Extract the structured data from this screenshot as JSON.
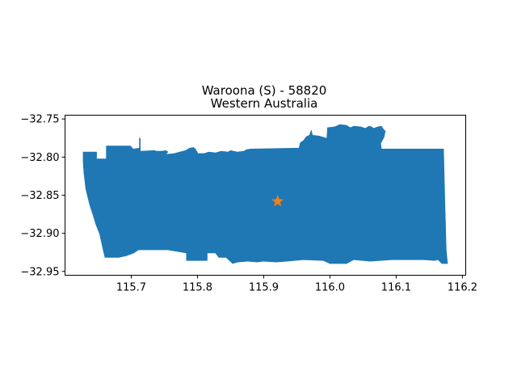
{
  "chart_data": {
    "type": "map",
    "title_line1": "Waroona (S) - 58820",
    "title_line2": "Western Australia",
    "xlim": [
      115.6,
      116.205
    ],
    "ylim": [
      -32.955,
      -32.745
    ],
    "xticks": [
      115.7,
      115.8,
      115.9,
      116.0,
      116.1,
      116.2
    ],
    "xtick_labels": [
      "115.7",
      "115.8",
      "115.9",
      "116.0",
      "116.1",
      "116.2"
    ],
    "yticks": [
      -32.75,
      -32.8,
      -32.85,
      -32.9,
      -32.95
    ],
    "ytick_labels": [
      "−32.75",
      "−32.80",
      "−32.85",
      "−32.90",
      "−32.95"
    ],
    "region_color": "#1f77b4",
    "marker_color": "#ff7f0e",
    "marker": {
      "lon": 115.921,
      "lat": -32.858
    },
    "boundary": [
      [
        115.627,
        -32.793
      ],
      [
        115.648,
        -32.793
      ],
      [
        115.648,
        -32.802
      ],
      [
        115.662,
        -32.802
      ],
      [
        115.662,
        -32.785
      ],
      [
        115.699,
        -32.785
      ],
      [
        115.703,
        -32.789
      ],
      [
        115.712,
        -32.788
      ],
      [
        115.712,
        -32.774
      ],
      [
        115.714,
        -32.776
      ],
      [
        115.714,
        -32.792
      ],
      [
        115.735,
        -32.791
      ],
      [
        115.738,
        -32.792
      ],
      [
        115.746,
        -32.792
      ],
      [
        115.752,
        -32.791
      ],
      [
        115.756,
        -32.793
      ],
      [
        115.753,
        -32.796
      ],
      [
        115.765,
        -32.795
      ],
      [
        115.773,
        -32.793
      ],
      [
        115.782,
        -32.791
      ],
      [
        115.788,
        -32.788
      ],
      [
        115.794,
        -32.787
      ],
      [
        115.797,
        -32.789
      ],
      [
        115.801,
        -32.795
      ],
      [
        115.81,
        -32.795
      ],
      [
        115.817,
        -32.793
      ],
      [
        115.827,
        -32.794
      ],
      [
        115.836,
        -32.792
      ],
      [
        115.846,
        -32.793
      ],
      [
        115.85,
        -32.791
      ],
      [
        115.86,
        -32.793
      ],
      [
        115.87,
        -32.792
      ],
      [
        115.874,
        -32.79
      ],
      [
        115.88,
        -32.789
      ],
      [
        115.944,
        -32.788
      ],
      [
        115.953,
        -32.788
      ],
      [
        115.955,
        -32.781
      ],
      [
        115.96,
        -32.778
      ],
      [
        115.964,
        -32.773
      ],
      [
        115.969,
        -32.771
      ],
      [
        115.97,
        -32.768
      ],
      [
        115.972,
        -32.764
      ],
      [
        115.974,
        -32.771
      ],
      [
        115.984,
        -32.772
      ],
      [
        115.995,
        -32.775
      ],
      [
        115.996,
        -32.761
      ],
      [
        116.007,
        -32.76
      ],
      [
        116.015,
        -32.757
      ],
      [
        116.025,
        -32.758
      ],
      [
        116.031,
        -32.761
      ],
      [
        116.036,
        -32.759
      ],
      [
        116.047,
        -32.76
      ],
      [
        116.053,
        -32.762
      ],
      [
        116.059,
        -32.759
      ],
      [
        116.063,
        -32.76
      ],
      [
        116.066,
        -32.762
      ],
      [
        116.072,
        -32.76
      ],
      [
        116.078,
        -32.759
      ],
      [
        116.08,
        -32.762
      ],
      [
        116.084,
        -32.766
      ],
      [
        116.082,
        -32.774
      ],
      [
        116.077,
        -32.782
      ],
      [
        116.078,
        -32.789
      ],
      [
        116.172,
        -32.789
      ],
      [
        116.174,
        -32.862
      ],
      [
        116.176,
        -32.922
      ],
      [
        116.178,
        -32.94
      ],
      [
        116.169,
        -32.94
      ],
      [
        116.163,
        -32.935
      ],
      [
        116.158,
        -32.936
      ],
      [
        116.142,
        -32.935
      ],
      [
        116.125,
        -32.935
      ],
      [
        116.093,
        -32.935
      ],
      [
        116.061,
        -32.937
      ],
      [
        116.036,
        -32.935
      ],
      [
        116.025,
        -32.94
      ],
      [
        116.0,
        -32.94
      ],
      [
        115.99,
        -32.936
      ],
      [
        115.96,
        -32.935
      ],
      [
        115.946,
        -32.936
      ],
      [
        115.935,
        -32.937
      ],
      [
        115.919,
        -32.938
      ],
      [
        115.899,
        -32.937
      ],
      [
        115.89,
        -32.938
      ],
      [
        115.876,
        -32.937
      ],
      [
        115.861,
        -32.938
      ],
      [
        115.853,
        -32.94
      ],
      [
        115.843,
        -32.932
      ],
      [
        115.832,
        -32.932
      ],
      [
        115.827,
        -32.926
      ],
      [
        115.815,
        -32.926
      ],
      [
        115.815,
        -32.936
      ],
      [
        115.783,
        -32.936
      ],
      [
        115.783,
        -32.926
      ],
      [
        115.755,
        -32.922
      ],
      [
        115.711,
        -32.922
      ],
      [
        115.704,
        -32.926
      ],
      [
        115.692,
        -32.93
      ],
      [
        115.681,
        -32.932
      ],
      [
        115.66,
        -32.932
      ],
      [
        115.657,
        -32.921
      ],
      [
        115.652,
        -32.901
      ],
      [
        115.646,
        -32.888
      ],
      [
        115.642,
        -32.876
      ],
      [
        115.637,
        -32.863
      ],
      [
        115.631,
        -32.842
      ],
      [
        115.628,
        -32.82
      ],
      [
        115.627,
        -32.806
      ]
    ]
  }
}
